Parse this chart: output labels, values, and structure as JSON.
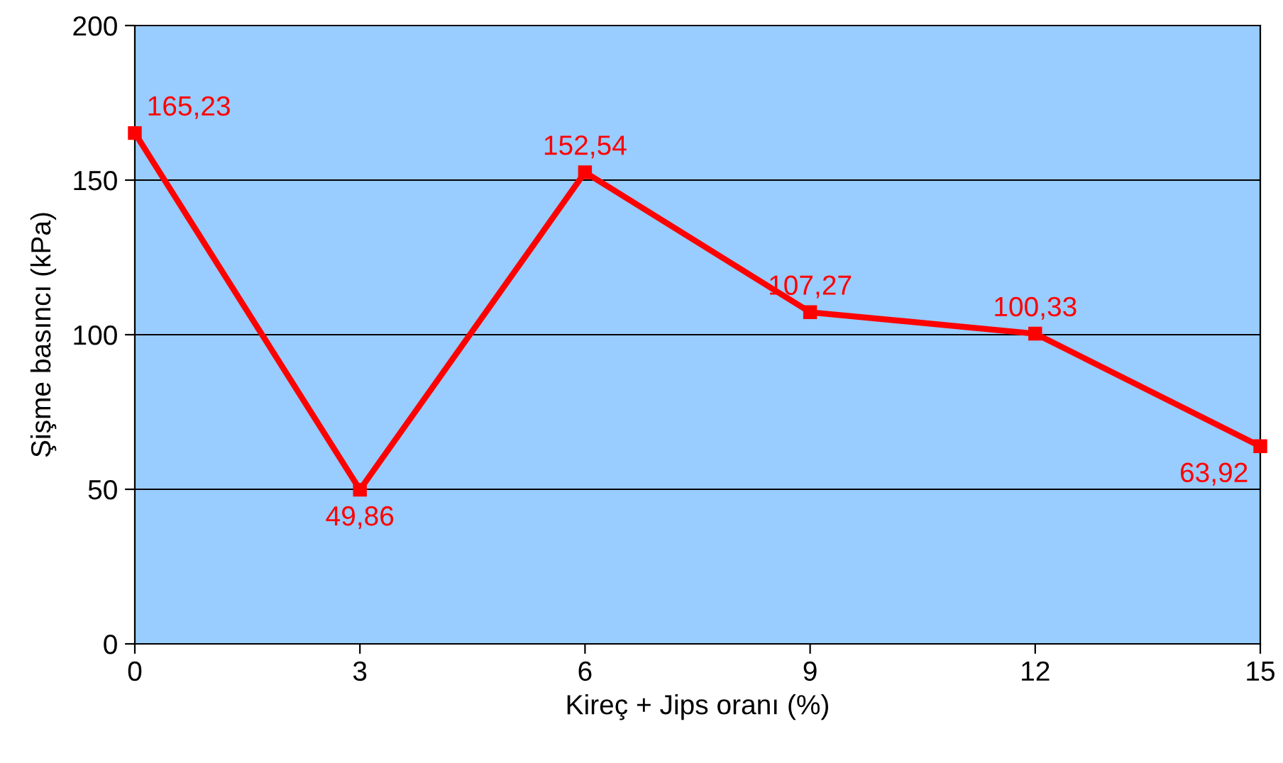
{
  "chart_data": {
    "type": "line",
    "xlabel": "Kireç + Jips oranı (%)",
    "ylabel": "Şişme basıncı (kPa)",
    "x": [
      0,
      3,
      6,
      9,
      12,
      15
    ],
    "series": [
      {
        "color": "#ff0000",
        "values": [
          165.23,
          49.86,
          152.54,
          107.27,
          100.33,
          63.92
        ],
        "value_labels": [
          "165,23",
          "49,86",
          "152,54",
          "107,27",
          "100,33",
          "63,92"
        ]
      }
    ],
    "xlim": [
      0,
      15
    ],
    "xticks": [
      0,
      3,
      6,
      9,
      12,
      15
    ],
    "ylim": [
      0,
      200
    ],
    "yticks": [
      0,
      50,
      100,
      150,
      200
    ],
    "grid": "y",
    "marker": "square",
    "line_style": "solid",
    "legend": false
  }
}
